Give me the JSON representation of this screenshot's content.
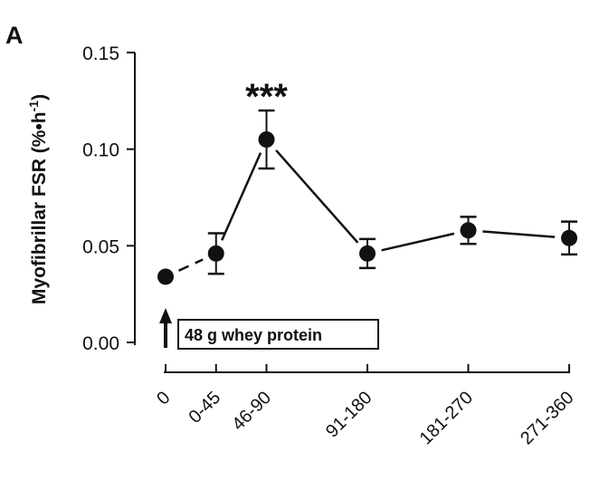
{
  "panel_label": "A",
  "chart_data": {
    "type": "line",
    "ylabel": "Myofibrillar FSR (%•h",
    "ylabel_superscript": "-1",
    "ylabel_close": ")",
    "ylim": [
      0,
      0.15
    ],
    "yticks": [
      "0.00",
      "0.05",
      "0.10",
      "0.15"
    ],
    "categories": [
      "0",
      "0-45",
      "46-90",
      "91-180",
      "181-270",
      "271-360"
    ],
    "x_positions": [
      0,
      45,
      90,
      180,
      270,
      360
    ],
    "series": [
      {
        "values": [
          0.034,
          0.046,
          0.105,
          0.046,
          0.058,
          0.054
        ],
        "errors": [
          0,
          0.0105,
          0.015,
          0.0075,
          0.007,
          0.0085
        ]
      }
    ],
    "line_style": {
      "first_segment": "dashed",
      "other_segments": "solid"
    },
    "significance": {
      "label": "***",
      "category": "46-90"
    },
    "annotation": {
      "label": "48 g whey protein",
      "arrow_at": "0"
    },
    "grid": false,
    "legend": "none"
  }
}
